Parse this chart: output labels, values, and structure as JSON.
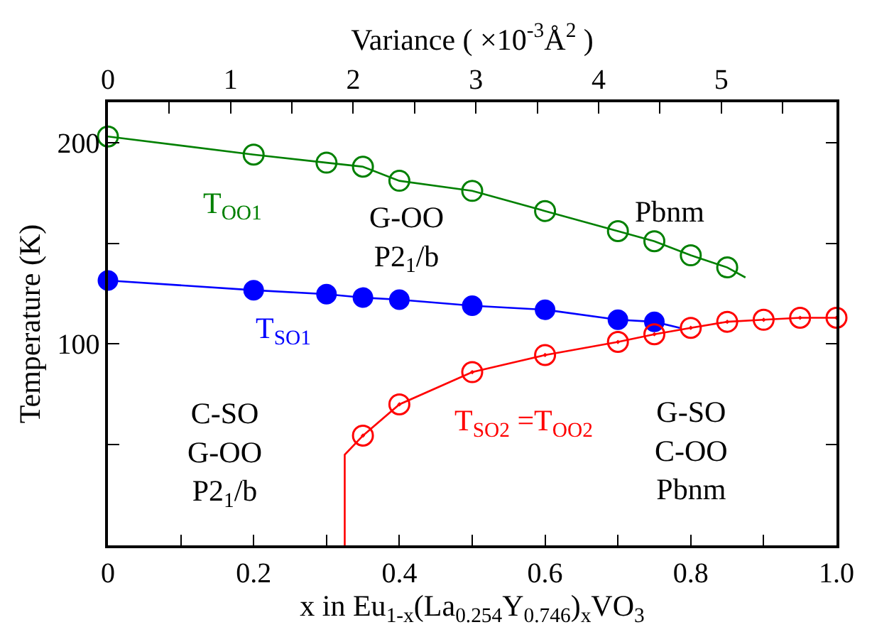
{
  "chart_data": {
    "type": "scatter",
    "xlabel": "x in Eu$_{1-x}$(La$_{0.254}$Y$_{0.746}$)$_{x}$VO$_{3}$",
    "ylabel": "Temperature (K)",
    "x2label": "Variance ( ×10$^{-3}$Å$^{2}$ )",
    "xlim": [
      0,
      1
    ],
    "ylim": [
      0,
      220
    ],
    "x2lim": [
      0,
      5.94
    ],
    "xticks": [
      0,
      {
        "value": 0.1,
        "label": null
      },
      0.2,
      {
        "value": 0.3,
        "label": null
      },
      0.4,
      {
        "value": 0.5,
        "label": null
      },
      0.6,
      {
        "value": 0.7,
        "label": null
      },
      0.8,
      {
        "value": 0.9,
        "label": null
      },
      {
        "value": 1,
        "label": "1.0"
      }
    ],
    "yticks": [
      {
        "value": 50,
        "label": null
      },
      100,
      {
        "value": 150,
        "label": null
      },
      200
    ],
    "x2ticks": [
      0,
      {
        "value": 0.5,
        "label": null
      },
      1,
      {
        "value": 1.5,
        "label": null
      },
      2,
      {
        "value": 2.5,
        "label": null
      },
      3,
      {
        "value": 3.5,
        "label": null
      },
      4,
      {
        "value": 4.5,
        "label": null
      },
      5,
      {
        "value": 5.5,
        "label": null
      }
    ],
    "legend": false,
    "series": [
      {
        "type": "line",
        "marker": "none",
        "color": "#008000",
        "x": [
          0,
          0.2,
          0.3,
          0.35,
          0.4,
          0.5,
          0.6,
          0.7,
          0.75,
          0.8,
          0.85,
          0.875
        ],
        "values": [
          203,
          194,
          190,
          188,
          181,
          176,
          166,
          156,
          151,
          144,
          138,
          133
        ]
      },
      {
        "type": "line",
        "marker": "none",
        "color": "#0000ff",
        "x": [
          0,
          0.2,
          0.3,
          0.35,
          0.4,
          0.5,
          0.6,
          0.7,
          0.75,
          0.785
        ],
        "values": [
          131.5,
          126.7,
          124.7,
          123,
          122,
          119,
          117,
          112,
          111,
          108
        ]
      },
      {
        "type": "line",
        "marker": "none",
        "color": "#ff0000",
        "x": [
          0.325,
          0.325,
          0.35,
          0.4,
          0.5,
          0.6,
          0.7,
          0.75,
          0.8,
          0.85,
          0.9,
          0.95,
          1.0
        ],
        "values": [
          0,
          45,
          54.5,
          70,
          86,
          94.5,
          101,
          104.8,
          108,
          111,
          112,
          113,
          113
        ]
      },
      {
        "marker": "circle",
        "color": "#008000",
        "x": [
          0,
          0.2,
          0.3,
          0.35,
          0.4,
          0.5,
          0.6,
          0.7,
          0.75,
          0.8,
          0.85
        ],
        "values": [
          203,
          194,
          190,
          188,
          181,
          176,
          166,
          156,
          151,
          144,
          138
        ]
      },
      {
        "marker": "circle",
        "color": "#0000ff",
        "x": [
          0,
          0.2,
          0.3,
          0.35,
          0.4,
          0.5,
          0.6,
          0.7,
          0.75
        ],
        "values": [
          131.5,
          126.7,
          124.7,
          123,
          122,
          119,
          117,
          112,
          111
        ]
      },
      {
        "marker": "circle",
        "color": "#ff0000",
        "x": [
          0.35,
          0.4,
          0.5,
          0.6,
          0.7,
          0.75,
          0.8,
          0.85,
          0.9,
          0.95,
          1.0
        ],
        "values": [
          54.5,
          70,
          86,
          94.5,
          101,
          104.8,
          108,
          111,
          112,
          113,
          113
        ]
      }
    ],
    "annotations": [
      "T$_{OO1}$",
      "G-OO\nP2$_{1}$/b",
      "Pbnm",
      "T$_{SO1}$",
      "C-SO\nG-OO\nP2$_{1}$/b",
      "T$_{SO2}$ =T$_{OO2}$",
      "G-SO\nC-OO\nPbnm"
    ]
  }
}
